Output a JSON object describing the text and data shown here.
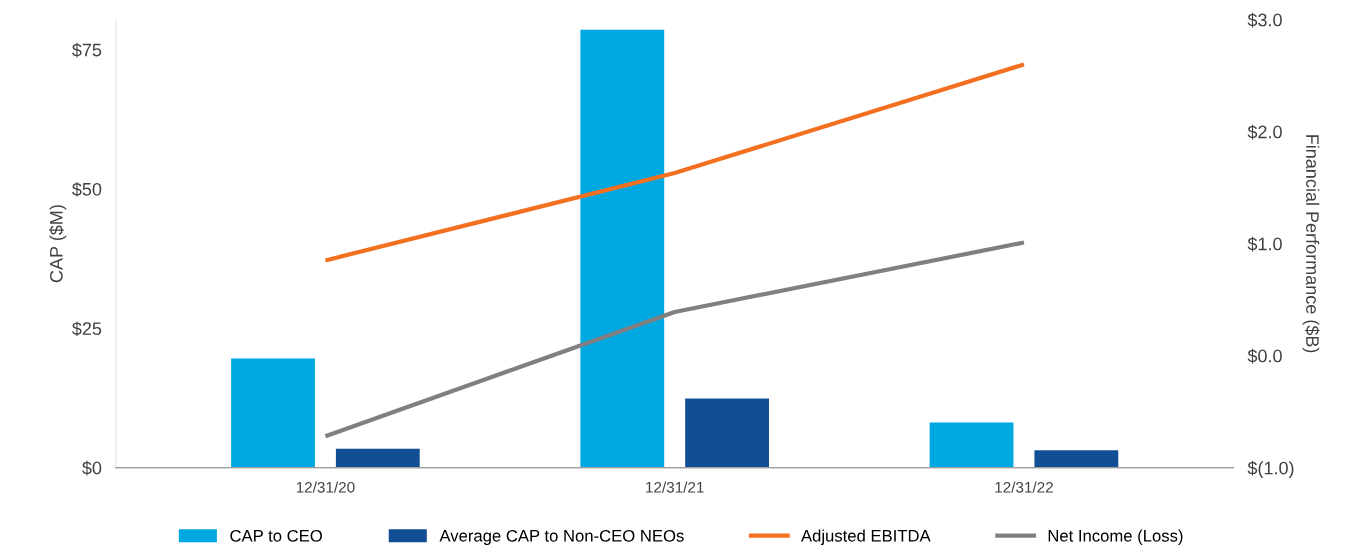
{
  "chart_data": {
    "type": "bar",
    "categories": [
      "12/31/20",
      "12/31/21",
      "12/31/22"
    ],
    "ylabel": "CAP ($M)",
    "y2label": "Financial Performance ($B)",
    "ylim": [
      0,
      80.4
    ],
    "yticks": [
      {
        "value": 0,
        "label": "$0"
      },
      {
        "value": 25,
        "label": "$25"
      },
      {
        "value": 50,
        "label": "$50"
      },
      {
        "value": 75,
        "label": "$75"
      }
    ],
    "y2lim": [
      -1,
      3
    ],
    "y2ticks": [
      {
        "value": -1,
        "label": "$(1.0)"
      },
      {
        "value": 0,
        "label": "$0.0"
      },
      {
        "value": 1,
        "label": "$1.0"
      },
      {
        "value": 2,
        "label": "$2.0"
      },
      {
        "value": 3,
        "label": "$3.0"
      }
    ],
    "grid": false,
    "legend": "bottom",
    "marker": "none",
    "line_style": "solid",
    "series": [
      {
        "name": "CAP to CEO",
        "color": "#00a8e1",
        "values": [
          19.6,
          78.6,
          8.1
        ]
      },
      {
        "name": "Average CAP to Non-CEO NEOs",
        "color": "#124e94",
        "values": [
          3.4,
          12.4,
          3.1
        ]
      },
      {
        "name": "Adjusted EBITDA",
        "type": "line",
        "axis": "y2",
        "color": "#f37021",
        "values": [
          0.85,
          1.63,
          2.6
        ]
      },
      {
        "name": "Net Income (Loss)",
        "type": "line",
        "axis": "y2",
        "color": "#808080",
        "values": [
          -0.72,
          0.39,
          1.01
        ]
      }
    ]
  }
}
